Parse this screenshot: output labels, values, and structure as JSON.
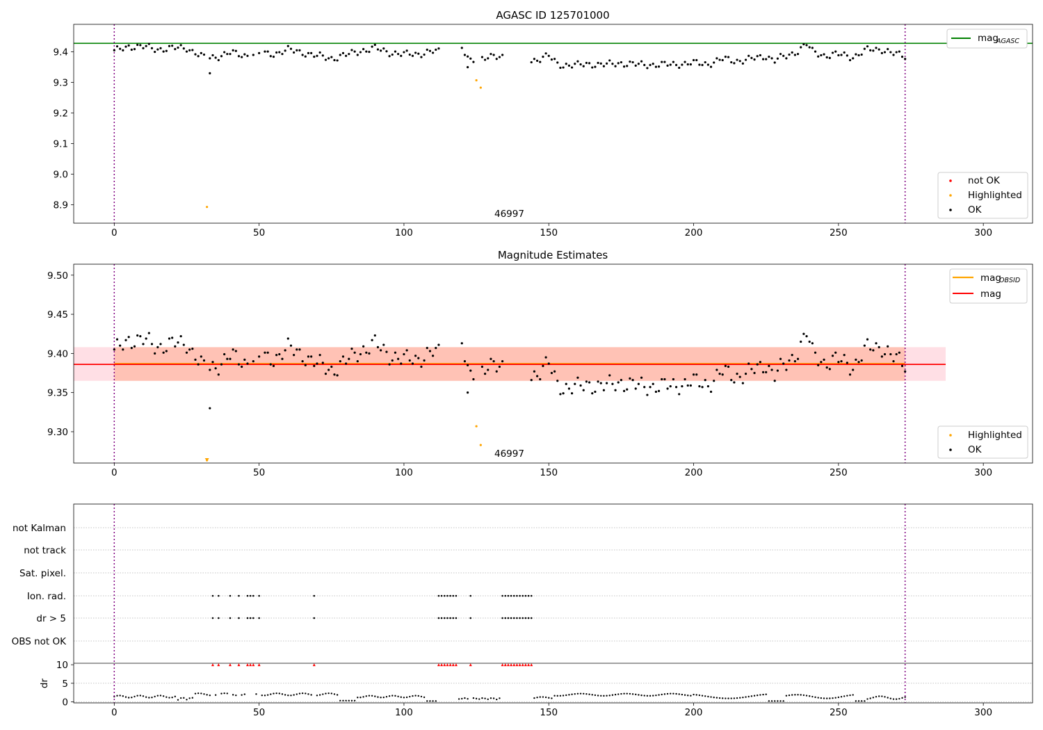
{
  "colors": {
    "ok": "#000000",
    "highlighted": "#ffa500",
    "not_ok": "#ff0000",
    "mag_agasc": "#008000",
    "mag_obsid": "#ffa500",
    "mag": "#ff0000",
    "band_mag": "#ffc0cb",
    "band_obsid": "#ffa07a",
    "obs_boundary": "#800080",
    "grid": "#b0b0b0"
  },
  "chart_data": [
    {
      "type": "scatter",
      "title": "AGASC ID 125701000",
      "xlabel": "",
      "ylabel": "",
      "xlim": [
        -14,
        317
      ],
      "ylim": [
        8.84,
        9.49
      ],
      "xticks": [
        0,
        50,
        100,
        150,
        200,
        250,
        300
      ],
      "yticks": [
        8.9,
        9.0,
        9.1,
        9.2,
        9.3,
        9.4
      ],
      "ytick_labels": [
        "8.9",
        "9.0",
        "9.1",
        "9.2",
        "9.3",
        "9.4"
      ],
      "grid": false,
      "annotations": [
        {
          "text": "46997",
          "x": 130,
          "y": 8.86
        }
      ],
      "obs_boundaries": [
        0,
        273
      ],
      "reference_lines": [
        {
          "name": "mag_AGASC",
          "label": "mag",
          "sub": "AGASC",
          "y": 9.428,
          "x_range": [
            -14,
            317
          ],
          "color": "#008000"
        }
      ],
      "legend_top": {
        "position": "top-right",
        "entries": [
          {
            "label": "mag",
            "sub": "AGASC",
            "kind": "line",
            "color": "#008000"
          }
        ]
      },
      "legend_bottom": {
        "position": "bottom-right",
        "entries": [
          {
            "label": "not OK",
            "kind": "dot",
            "color": "#ff0000"
          },
          {
            "label": "Highlighted",
            "kind": "dot",
            "color": "#ffa500"
          },
          {
            "label": "OK",
            "kind": "dot",
            "color": "#000000"
          }
        ]
      },
      "series": [
        {
          "name": "OK",
          "color": "#000000",
          "points": []
        },
        {
          "name": "Highlighted",
          "color": "#ffa500",
          "points": [
            [
              32,
              8.893
            ],
            [
              125,
              9.307
            ],
            [
              126.5,
              9.283
            ]
          ]
        }
      ]
    },
    {
      "type": "scatter",
      "title": "Magnitude Estimates",
      "xlabel": "",
      "ylabel": "",
      "xlim": [
        -14,
        317
      ],
      "ylim": [
        9.26,
        9.514
      ],
      "xticks": [
        0,
        50,
        100,
        150,
        200,
        250,
        300
      ],
      "yticks": [
        9.3,
        9.35,
        9.4,
        9.45,
        9.5
      ],
      "ytick_labels": [
        "9.30",
        "9.35",
        "9.40",
        "9.45",
        "9.50"
      ],
      "grid": false,
      "annotations": [
        {
          "text": "46997",
          "x": 130,
          "y": 9.266
        }
      ],
      "obs_boundaries": [
        0,
        273
      ],
      "bands": [
        {
          "name": "mag",
          "y0": 9.365,
          "y1": 9.408,
          "x0": -14,
          "x1": 287,
          "color": "#ffc0cb",
          "opacity": 0.5
        },
        {
          "name": "mag_OBSID",
          "y0": 9.365,
          "y1": 9.408,
          "x0": 0,
          "x1": 273,
          "color": "#ffa07a",
          "opacity": 0.45
        }
      ],
      "reference_lines": [
        {
          "name": "mag_OBSID",
          "y": 9.387,
          "x_range": [
            0,
            273
          ],
          "color": "#ffa500"
        },
        {
          "name": "mag",
          "y": 9.386,
          "x_range": [
            -14,
            287
          ],
          "color": "#ff0000"
        }
      ],
      "legend_top": {
        "position": "top-right",
        "entries": [
          {
            "label": "mag",
            "sub": "OBSID",
            "kind": "line",
            "color": "#ffa500"
          },
          {
            "label": "mag",
            "kind": "line",
            "color": "#ff0000"
          }
        ]
      },
      "legend_bottom": {
        "position": "bottom-right",
        "entries": [
          {
            "label": "Highlighted",
            "kind": "dot",
            "color": "#ffa500"
          },
          {
            "label": "OK",
            "kind": "dot",
            "color": "#000000"
          }
        ]
      },
      "series": [
        {
          "name": "OK",
          "color": "#000000",
          "points": []
        },
        {
          "name": "Highlighted",
          "color": "#ffa500",
          "points": [
            [
              32,
              9.261
            ],
            [
              125,
              9.307
            ],
            [
              126.5,
              9.283
            ]
          ]
        }
      ],
      "off_scale_markers": [
        {
          "x": 32,
          "color": "#ffa500"
        }
      ]
    },
    {
      "type": "scatter",
      "title": "",
      "xlabel": "",
      "xlim": [
        -14,
        317
      ],
      "xticks": [
        0,
        50,
        100,
        150,
        200,
        250,
        300
      ],
      "obs_boundaries": [
        0,
        273
      ],
      "flag_rows": [
        "not Kalman",
        "not track",
        "Sat. pixel.",
        "Ion. rad.",
        "dr > 5",
        "OBS not OK"
      ],
      "flag_points": {
        "Ion. rad.": [
          34,
          36,
          40,
          43,
          46,
          47,
          48,
          50,
          69,
          112,
          113,
          114,
          115,
          116,
          117,
          118,
          123,
          134,
          135,
          136,
          137,
          138,
          139,
          140,
          141,
          142,
          143,
          144
        ],
        "dr > 5": [
          34,
          36,
          40,
          43,
          46,
          47,
          48,
          50,
          69,
          112,
          113,
          114,
          115,
          116,
          117,
          118,
          123,
          134,
          135,
          136,
          137,
          138,
          139,
          140,
          141,
          142,
          143,
          144
        ]
      },
      "dr": {
        "ylabel": "dr",
        "ylim": [
          -0.3,
          10.4
        ],
        "yticks": [
          0,
          5,
          10
        ],
        "ytick_labels": [
          "0",
          "5",
          "10"
        ],
        "clip_value": 10,
        "clipped_x": [
          34,
          36,
          40,
          43,
          46,
          47,
          48,
          50,
          69,
          112,
          113,
          114,
          115,
          116,
          117,
          118,
          123,
          134,
          135,
          136,
          137,
          138,
          139,
          140,
          141,
          142,
          143,
          144
        ],
        "clipped_color": "#ff0000",
        "points": []
      }
    }
  ]
}
